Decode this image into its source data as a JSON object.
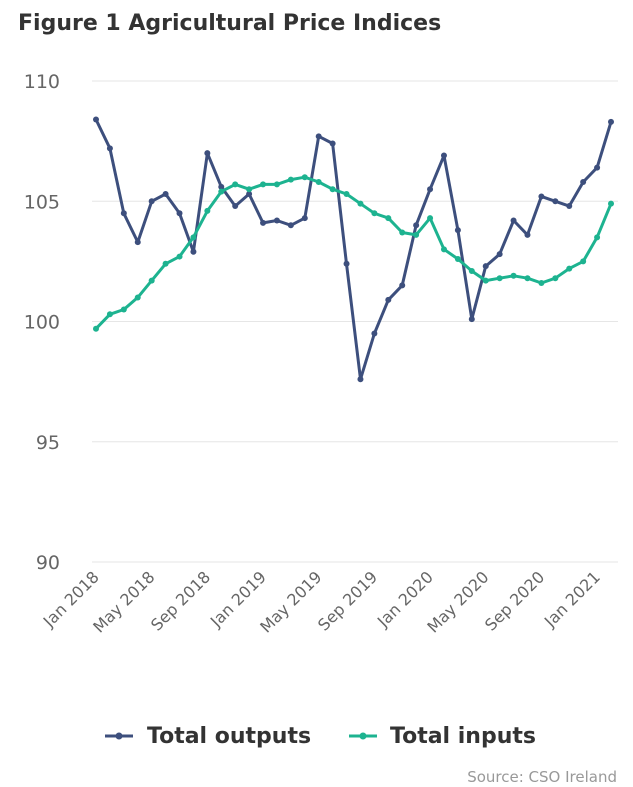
{
  "chart_data": {
    "type": "line",
    "title": "Figure 1 Agricultural Price Indices",
    "xlabel": "",
    "ylabel": "",
    "ylim": [
      90,
      110
    ],
    "yticks": [
      90,
      95,
      100,
      105,
      110
    ],
    "x": [
      "Jan 2018",
      "Feb 2018",
      "Mar 2018",
      "Apr 2018",
      "May 2018",
      "Jun 2018",
      "Jul 2018",
      "Aug 2018",
      "Sep 2018",
      "Oct 2018",
      "Nov 2018",
      "Dec 2018",
      "Jan 2019",
      "Feb 2019",
      "Mar 2019",
      "Apr 2019",
      "May 2019",
      "Jun 2019",
      "Jul 2019",
      "Aug 2019",
      "Sep 2019",
      "Oct 2019",
      "Nov 2019",
      "Dec 2019",
      "Jan 2020",
      "Feb 2020",
      "Mar 2020",
      "Apr 2020",
      "May 2020",
      "Jun 2020",
      "Jul 2020",
      "Aug 2020",
      "Sep 2020",
      "Oct 2020",
      "Nov 2020",
      "Dec 2020",
      "Jan 2021",
      "Feb 2021"
    ],
    "xtick_labels": [
      "Jan 2018",
      "May 2018",
      "Sep 2018",
      "Jan 2019",
      "May 2019",
      "Sep 2019",
      "Jan 2020",
      "May 2020",
      "Sep 2020",
      "Jan 2021"
    ],
    "series": [
      {
        "name": "Total outputs",
        "color": "#3d4f7d",
        "values": [
          108.4,
          107.2,
          104.5,
          103.3,
          105.0,
          105.3,
          104.5,
          102.9,
          107.0,
          105.6,
          104.8,
          105.3,
          104.1,
          104.2,
          104.0,
          104.3,
          107.7,
          107.4,
          102.4,
          97.6,
          99.5,
          100.9,
          101.5,
          104.0,
          105.5,
          106.9,
          103.8,
          100.1,
          102.3,
          102.8,
          104.2,
          103.6,
          105.2,
          105.0,
          104.8,
          105.8,
          106.4,
          108.3
        ]
      },
      {
        "name": "Total inputs",
        "color": "#1db390",
        "values": [
          99.7,
          100.3,
          100.5,
          101.0,
          101.7,
          102.4,
          102.7,
          103.5,
          104.6,
          105.4,
          105.7,
          105.5,
          105.7,
          105.7,
          105.9,
          106.0,
          105.8,
          105.5,
          105.3,
          104.9,
          104.5,
          104.3,
          103.7,
          103.6,
          104.3,
          103.0,
          102.6,
          102.1,
          101.7,
          101.8,
          101.9,
          101.8,
          101.6,
          101.8,
          102.2,
          102.5,
          103.5,
          104.9
        ]
      }
    ],
    "legend": "bottom",
    "source": "Source: CSO Ireland"
  }
}
